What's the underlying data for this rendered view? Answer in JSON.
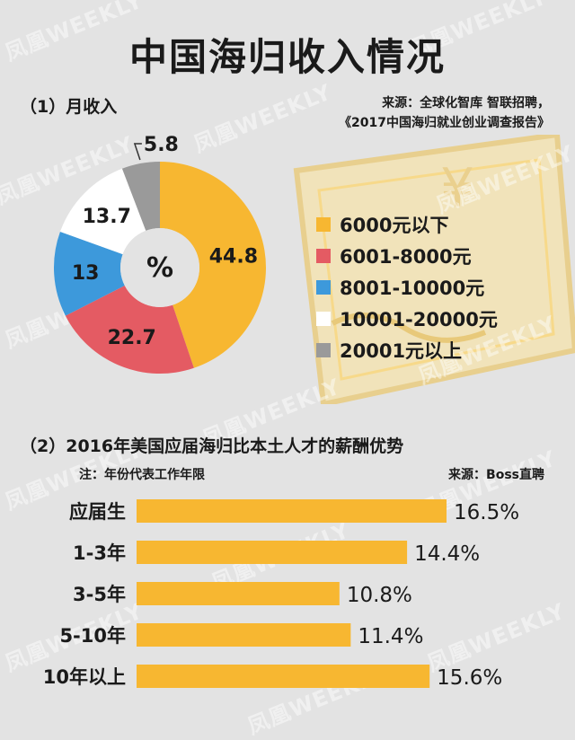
{
  "page_title": "中国海归收入情况",
  "watermark": "凤凰WEEKLY",
  "colors": {
    "background": "#e3e3e3",
    "orange": "#f7b731",
    "red": "#e45b63",
    "blue": "#3d99db",
    "white": "#ffffff",
    "gray": "#9a9a9a"
  },
  "section1": {
    "title": "（1）月收入",
    "source_line1": "来源：全球化智库 智联招聘，",
    "source_line2": "《2017中国海归就业创业调查报告》"
  },
  "section2": {
    "title": "（2）2016年美国应届海归比本土人才的薪酬优势",
    "note": "注：年份代表工作年限",
    "source": "来源：Boss直聘"
  },
  "chart_data": [
    {
      "type": "pie",
      "center_label": "%",
      "categories": [
        "6000元以下",
        "6001-8000元",
        "8001-10000元",
        "10001-20000元",
        "20001元以上"
      ],
      "values": [
        44.8,
        22.7,
        13,
        13.7,
        5.8
      ],
      "value_labels": [
        "44.8",
        "22.7",
        "13",
        "13.7",
        "5.8"
      ],
      "colors": [
        "#f7b731",
        "#e45b63",
        "#3d99db",
        "#ffffff",
        "#9a9a9a"
      ],
      "legend_position": "right"
    },
    {
      "type": "bar",
      "orientation": "horizontal",
      "categories": [
        "应届生",
        "1-3年",
        "3-5年",
        "5-10年",
        "10年以上"
      ],
      "values": [
        16.5,
        14.4,
        10.8,
        11.4,
        15.6
      ],
      "value_labels": [
        "16.5%",
        "14.4%",
        "10.8%",
        "11.4%",
        "15.6%"
      ],
      "color": "#f7b731"
    }
  ]
}
